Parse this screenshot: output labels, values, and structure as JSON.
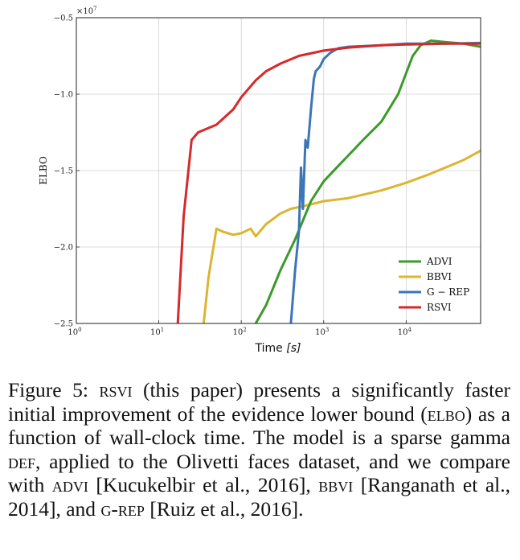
{
  "figure": {
    "chart_data": {
      "type": "line",
      "xlabel_text": "Time ",
      "xlabel_unit": "[s]",
      "ylabel": "ELBO",
      "y_multiplier": "×10",
      "y_multiplier_exp": "7",
      "x_scale": "log",
      "xlim": [
        1,
        80000
      ],
      "ylim": [
        -25000000,
        -5000000
      ],
      "x_ticks": [
        {
          "base": "10",
          "exp": "0",
          "value": 1
        },
        {
          "base": "10",
          "exp": "1",
          "value": 10
        },
        {
          "base": "10",
          "exp": "2",
          "value": 100
        },
        {
          "base": "10",
          "exp": "3",
          "value": 1000
        },
        {
          "base": "10",
          "exp": "4",
          "value": 10000
        }
      ],
      "y_ticks": [
        {
          "label": "−0.5",
          "value": -5000000
        },
        {
          "label": "−1.0",
          "value": -10000000
        },
        {
          "label": "−1.5",
          "value": -15000000
        },
        {
          "label": "−2.0",
          "value": -20000000
        },
        {
          "label": "−2.5",
          "value": -25000000
        }
      ],
      "grid": true,
      "legend_position": "bottom-right",
      "series": [
        {
          "name": "ADVI",
          "color": "#3a9a2a",
          "x": [
            150,
            200,
            300,
            450,
            700,
            1000,
            1500,
            2000,
            3000,
            5000,
            8000,
            12000,
            15000,
            20000,
            30000,
            50000,
            80000
          ],
          "y": [
            -25000000,
            -23800000,
            -21500000,
            -19500000,
            -17000000,
            -15700000,
            -14700000,
            -14000000,
            -13000000,
            -11800000,
            -10000000,
            -7500000,
            -6800000,
            -6500000,
            -6600000,
            -6700000,
            -6900000
          ]
        },
        {
          "name": "BBVI",
          "color": "#dcb531",
          "x": [
            35,
            40,
            50,
            60,
            80,
            100,
            130,
            150,
            200,
            300,
            400,
            600,
            1000,
            2000,
            5000,
            10000,
            20000,
            50000,
            80000
          ],
          "y": [
            -25000000,
            -22000000,
            -18800000,
            -19000000,
            -19200000,
            -19100000,
            -18800000,
            -19300000,
            -18500000,
            -17800000,
            -17500000,
            -17300000,
            -17000000,
            -16800000,
            -16300000,
            -15800000,
            -15200000,
            -14300000,
            -13700000
          ]
        },
        {
          "name": "G − REP",
          "color": "#3b76b8",
          "x": [
            400,
            450,
            500,
            530,
            560,
            600,
            640,
            700,
            760,
            800,
            900,
            1000,
            1200,
            1500,
            2000,
            5000,
            10000,
            30000,
            80000
          ],
          "y": [
            -25000000,
            -21500000,
            -19000000,
            -14800000,
            -17500000,
            -13000000,
            -13500000,
            -11000000,
            -9000000,
            -8500000,
            -8200000,
            -7700000,
            -7300000,
            -7000000,
            -6900000,
            -6800000,
            -6700000,
            -6700000,
            -6650000
          ]
        },
        {
          "name": "RSVI",
          "color": "#d62a2a",
          "x": [
            17,
            20,
            25,
            30,
            50,
            80,
            100,
            150,
            200,
            300,
            500,
            1000,
            2000,
            5000,
            10000,
            30000,
            80000
          ],
          "y": [
            -25000000,
            -18000000,
            -13000000,
            -12500000,
            -12000000,
            -11000000,
            -10200000,
            -9100000,
            -8500000,
            -8000000,
            -7500000,
            -7150000,
            -6950000,
            -6800000,
            -6750000,
            -6700000,
            -6700000
          ]
        }
      ]
    }
  },
  "caption": {
    "p1": "Figure 5:  ",
    "p2": "rsvi",
    "p3": " (this paper) presents a significantly faster initial improvement of the evidence lower bound (",
    "p4": "elbo",
    "p5": ") as a function of wall-clock time.  The model is a sparse gamma ",
    "p6": "def",
    "p7": ", applied to the Olivetti faces dataset, and we compare with ",
    "p8": "advi",
    "p9": " [Kucukelbir et al., 2016], ",
    "p10": "bbvi",
    "p11": " [Ranganath et al., 2014], and ",
    "p12": "g-rep",
    "p13": " [Ruiz et al., 2016]."
  }
}
